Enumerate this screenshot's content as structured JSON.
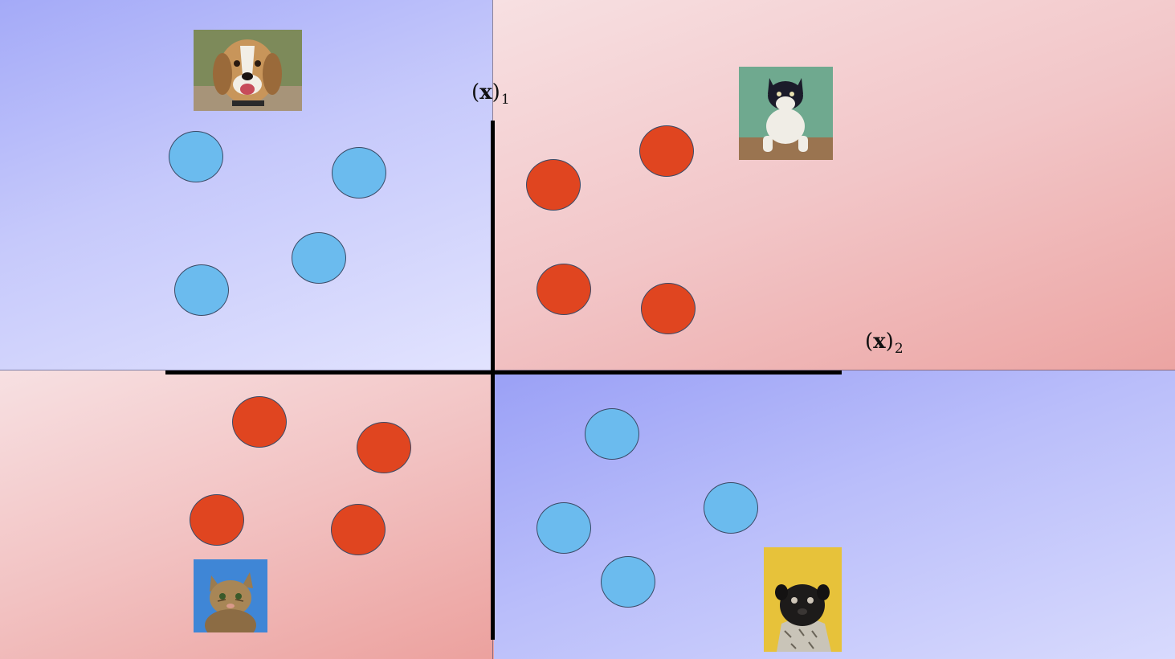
{
  "labels": {
    "x1": {
      "bracket_open": "(",
      "var": "x",
      "bracket_close": ")",
      "sub": "1"
    },
    "x2": {
      "bracket_open": "(",
      "var": "x",
      "bracket_close": ")",
      "sub": "2"
    }
  },
  "colors": {
    "cat_point": "#e04520",
    "dog_point": "#6bbbee",
    "blue_region": "#b9bdfa",
    "red_region": "#f2c4c5",
    "axis": "#000000"
  },
  "quadrant_photos": {
    "top_left": "dog-photo-icon",
    "top_right": "cat-photo-icon",
    "bottom_left": "cat-photo-icon",
    "bottom_right": "pug-photo-icon"
  }
}
